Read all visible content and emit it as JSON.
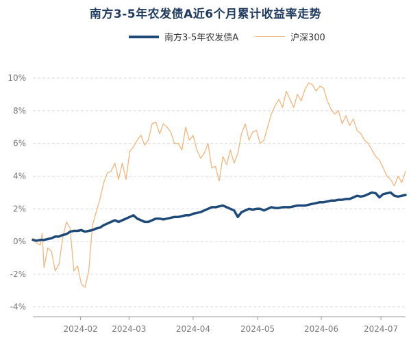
{
  "chart_data": {
    "type": "line",
    "title": "南方3-5年农发债A近6个月累计收益率走势",
    "xlabel": "",
    "ylabel": "",
    "ylim": [
      -4.6,
      10.8
    ],
    "xlim": [
      0,
      100
    ],
    "x_ticks": [
      {
        "x": 12.8,
        "label": "2024-02"
      },
      {
        "x": 25.8,
        "label": "2024-03"
      },
      {
        "x": 43.0,
        "label": "2024-04"
      },
      {
        "x": 60.3,
        "label": "2024-05"
      },
      {
        "x": 77.4,
        "label": "2024-06"
      },
      {
        "x": 93.4,
        "label": "2024-07"
      }
    ],
    "y_ticks": [
      {
        "value": 10,
        "label": "10%"
      },
      {
        "value": 8,
        "label": "8%"
      },
      {
        "value": 6,
        "label": "6%"
      },
      {
        "value": 4,
        "label": "4%"
      },
      {
        "value": 2,
        "label": "2%"
      },
      {
        "value": 0,
        "label": "0%"
      },
      {
        "value": -2,
        "label": "-2%"
      },
      {
        "value": -4,
        "label": "-4%"
      }
    ],
    "series": [
      {
        "name": "南方3-5年农发债A",
        "color": "#1e4a7a",
        "width": 3.5,
        "points": [
          [
            0,
            0.1
          ],
          [
            1,
            0.05
          ],
          [
            2,
            0.1
          ],
          [
            3,
            0.1
          ],
          [
            4,
            0.15
          ],
          [
            5,
            0.2
          ],
          [
            6,
            0.3
          ],
          [
            7,
            0.3
          ],
          [
            8,
            0.4
          ],
          [
            9,
            0.45
          ],
          [
            10,
            0.6
          ],
          [
            11,
            0.65
          ],
          [
            12,
            0.65
          ],
          [
            13,
            0.7
          ],
          [
            14,
            0.6
          ],
          [
            15,
            0.65
          ],
          [
            16,
            0.7
          ],
          [
            17,
            0.8
          ],
          [
            18,
            0.85
          ],
          [
            19,
            1.0
          ],
          [
            20,
            1.1
          ],
          [
            21,
            1.2
          ],
          [
            22,
            1.3
          ],
          [
            23,
            1.2
          ],
          [
            24,
            1.3
          ],
          [
            25,
            1.4
          ],
          [
            26,
            1.5
          ],
          [
            27,
            1.6
          ],
          [
            28,
            1.4
          ],
          [
            29,
            1.3
          ],
          [
            30,
            1.2
          ],
          [
            31,
            1.2
          ],
          [
            32,
            1.3
          ],
          [
            33,
            1.4
          ],
          [
            34,
            1.4
          ],
          [
            35,
            1.35
          ],
          [
            36,
            1.4
          ],
          [
            37,
            1.45
          ],
          [
            38,
            1.5
          ],
          [
            39,
            1.5
          ],
          [
            40,
            1.55
          ],
          [
            41,
            1.6
          ],
          [
            42,
            1.6
          ],
          [
            43,
            1.7
          ],
          [
            44,
            1.75
          ],
          [
            45,
            1.8
          ],
          [
            46,
            1.9
          ],
          [
            47,
            2.0
          ],
          [
            48,
            2.1
          ],
          [
            49,
            2.1
          ],
          [
            50,
            2.15
          ],
          [
            51,
            2.2
          ],
          [
            52,
            2.1
          ],
          [
            53,
            2.0
          ],
          [
            54,
            1.9
          ],
          [
            55,
            1.5
          ],
          [
            56,
            1.8
          ],
          [
            57,
            1.9
          ],
          [
            58,
            2.0
          ],
          [
            59,
            1.95
          ],
          [
            60,
            2.0
          ],
          [
            61,
            2.0
          ],
          [
            62,
            1.9
          ],
          [
            63,
            2.0
          ],
          [
            64,
            2.1
          ],
          [
            65,
            2.05
          ],
          [
            66,
            2.05
          ],
          [
            67,
            2.1
          ],
          [
            68,
            2.1
          ],
          [
            69,
            2.1
          ],
          [
            70,
            2.15
          ],
          [
            71,
            2.2
          ],
          [
            72,
            2.2
          ],
          [
            73,
            2.2
          ],
          [
            74,
            2.25
          ],
          [
            75,
            2.3
          ],
          [
            76,
            2.35
          ],
          [
            77,
            2.4
          ],
          [
            78,
            2.4
          ],
          [
            79,
            2.45
          ],
          [
            80,
            2.5
          ],
          [
            81,
            2.5
          ],
          [
            82,
            2.55
          ],
          [
            83,
            2.55
          ],
          [
            84,
            2.6
          ],
          [
            85,
            2.6
          ],
          [
            86,
            2.7
          ],
          [
            87,
            2.8
          ],
          [
            88,
            2.75
          ],
          [
            89,
            2.8
          ],
          [
            90,
            2.9
          ],
          [
            91,
            3.0
          ],
          [
            92,
            2.95
          ],
          [
            93,
            2.7
          ],
          [
            94,
            2.9
          ],
          [
            95,
            2.95
          ],
          [
            96,
            3.0
          ],
          [
            97,
            2.8
          ],
          [
            98,
            2.75
          ],
          [
            99,
            2.8
          ],
          [
            100,
            2.85
          ]
        ]
      },
      {
        "name": "沪深300",
        "color": "#f4b57a",
        "width": 1.3,
        "points": [
          [
            0,
            0.2
          ],
          [
            1,
            -0.1
          ],
          [
            2,
            -0.2
          ],
          [
            2.5,
            0.5
          ],
          [
            3,
            -1.6
          ],
          [
            4,
            -0.4
          ],
          [
            5,
            -0.6
          ],
          [
            6,
            -1.8
          ],
          [
            7,
            -1.4
          ],
          [
            8,
            0.2
          ],
          [
            9,
            1.2
          ],
          [
            10,
            0.8
          ],
          [
            11,
            -1.8
          ],
          [
            12,
            -1.5
          ],
          [
            13,
            -2.6
          ],
          [
            14,
            -2.8
          ],
          [
            15,
            -1.8
          ],
          [
            16,
            1.0
          ],
          [
            17,
            1.8
          ],
          [
            18,
            2.6
          ],
          [
            19,
            3.6
          ],
          [
            20,
            4.2
          ],
          [
            21,
            4.3
          ],
          [
            22,
            4.8
          ],
          [
            23,
            3.8
          ],
          [
            24,
            4.8
          ],
          [
            25,
            3.8
          ],
          [
            26,
            5.5
          ],
          [
            27,
            5.8
          ],
          [
            28,
            6.2
          ],
          [
            29,
            6.5
          ],
          [
            30,
            5.9
          ],
          [
            31,
            6.2
          ],
          [
            32,
            7.2
          ],
          [
            33,
            7.3
          ],
          [
            34,
            6.6
          ],
          [
            35,
            7.2
          ],
          [
            36,
            7.0
          ],
          [
            37,
            6.7
          ],
          [
            38,
            6.0
          ],
          [
            39,
            6.0
          ],
          [
            40,
            5.6
          ],
          [
            41,
            7.0
          ],
          [
            42,
            6.2
          ],
          [
            43,
            6.5
          ],
          [
            44,
            5.6
          ],
          [
            45,
            5.1
          ],
          [
            46,
            5.4
          ],
          [
            47,
            6.0
          ],
          [
            48,
            4.5
          ],
          [
            49,
            4.6
          ],
          [
            50,
            3.7
          ],
          [
            51,
            5.2
          ],
          [
            52,
            4.7
          ],
          [
            53,
            5.6
          ],
          [
            54,
            4.8
          ],
          [
            55,
            5.4
          ],
          [
            56,
            6.6
          ],
          [
            57,
            7.2
          ],
          [
            58,
            6.2
          ],
          [
            59,
            6.7
          ],
          [
            60,
            6.8
          ],
          [
            61,
            6.0
          ],
          [
            62,
            6.2
          ],
          [
            63,
            7.0
          ],
          [
            64,
            7.8
          ],
          [
            65,
            8.3
          ],
          [
            66,
            8.7
          ],
          [
            67,
            8.2
          ],
          [
            68,
            9.2
          ],
          [
            69,
            8.7
          ],
          [
            70,
            8.2
          ],
          [
            71,
            9.0
          ],
          [
            72,
            8.6
          ],
          [
            73,
            9.3
          ],
          [
            74,
            9.7
          ],
          [
            75,
            9.6
          ],
          [
            76,
            9.2
          ],
          [
            77,
            9.5
          ],
          [
            78,
            9.4
          ],
          [
            79,
            8.6
          ],
          [
            80,
            8.1
          ],
          [
            81,
            7.8
          ],
          [
            82,
            8.0
          ],
          [
            83,
            7.2
          ],
          [
            84,
            7.7
          ],
          [
            85,
            7.1
          ],
          [
            86,
            7.5
          ],
          [
            87,
            6.8
          ],
          [
            88,
            6.6
          ],
          [
            89,
            6.2
          ],
          [
            90,
            6.0
          ],
          [
            91,
            5.6
          ],
          [
            92,
            5.2
          ],
          [
            93,
            5.0
          ],
          [
            94,
            4.5
          ],
          [
            95,
            4.0
          ],
          [
            96,
            3.8
          ],
          [
            97,
            3.4
          ],
          [
            98,
            4.0
          ],
          [
            99,
            3.6
          ],
          [
            100,
            4.3
          ]
        ]
      }
    ]
  }
}
